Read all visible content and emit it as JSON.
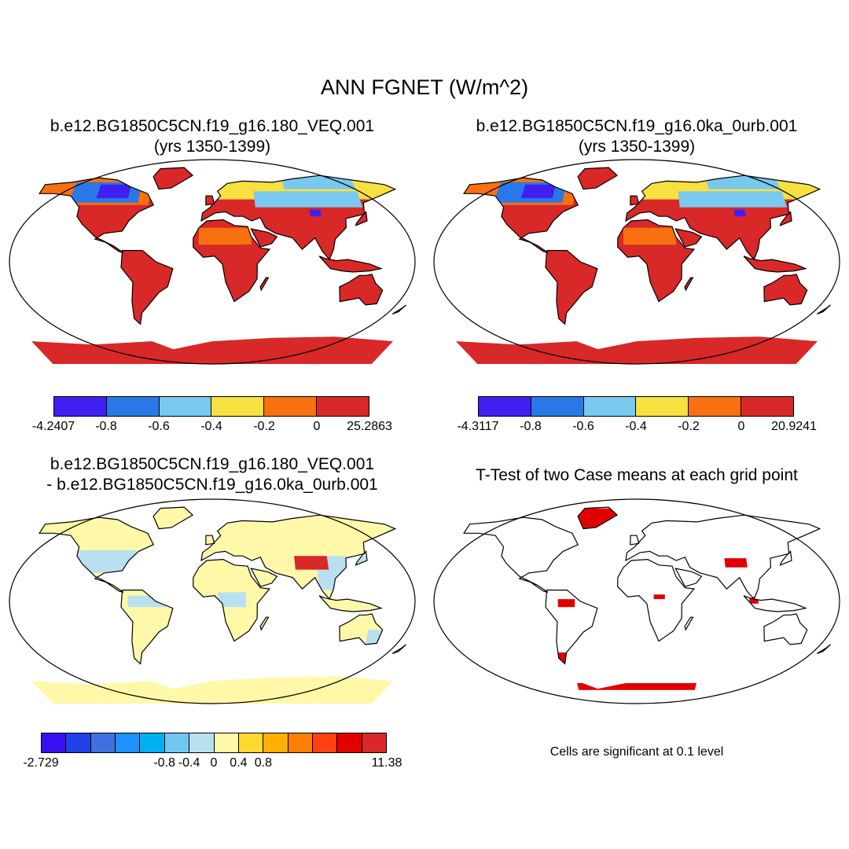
{
  "figure": {
    "title": "ANN FGNET (W/m^2)"
  },
  "panels": [
    {
      "id": "case1",
      "title_line1": "b.e12.BG1850C5CN.f19_g16.180_VEQ.001",
      "title_line2": "(yrs 1350-1399)",
      "colorbar": {
        "colors": [
          "#4020f0",
          "#2a78e8",
          "#78c8f0",
          "#f8e040",
          "#f87010",
          "#d82828"
        ],
        "labels": [
          "-4.2407",
          "-0.8",
          "-0.6",
          "-0.4",
          "-0.2",
          "0",
          "25.2863"
        ]
      }
    },
    {
      "id": "case2",
      "title_line1": "b.e12.BG1850C5CN.f19_g16.0ka_0urb.001",
      "title_line2": "(yrs 1350-1399)",
      "colorbar": {
        "colors": [
          "#4020f0",
          "#2a78e8",
          "#78c8f0",
          "#f8e040",
          "#f87010",
          "#d82828"
        ],
        "labels": [
          "-4.3117",
          "-0.8",
          "-0.6",
          "-0.4",
          "-0.2",
          "0",
          "20.9241"
        ]
      }
    },
    {
      "id": "difference",
      "title_line1": "b.e12.BG1850C5CN.f19_g16.180_VEQ.001",
      "title_line2": "- b.e12.BG1850C5CN.f19_g16.0ka_0urb.001",
      "colorbar": {
        "colors": [
          "#3a10f0",
          "#2040e8",
          "#4070e0",
          "#1e90ff",
          "#00b0f0",
          "#70c8f0",
          "#b8e0f0",
          "#fff8a8",
          "#ffd830",
          "#ffb000",
          "#ff8000",
          "#ff4010",
          "#e00000",
          "#d82828"
        ],
        "labels": [
          "-2.729",
          "-0.8",
          "-0.4",
          "0",
          "0.4",
          "0.8",
          "11.38"
        ]
      }
    },
    {
      "id": "ttest",
      "title_line1": "T-Test of two Case means at each grid point",
      "note": "Cells are significant at 0.1 level"
    }
  ],
  "map_palette": {
    "case_land": "#d82828",
    "case_orange": "#f87010",
    "case_yellow": "#f8e040",
    "case_light": "#78c8f0",
    "case_blue": "#2a78e8",
    "case_deep": "#4020f0",
    "diff_land": "#fff8a8",
    "diff_light": "#b8e0f0",
    "diff_red": "#d82828",
    "sig": "#e00000"
  }
}
